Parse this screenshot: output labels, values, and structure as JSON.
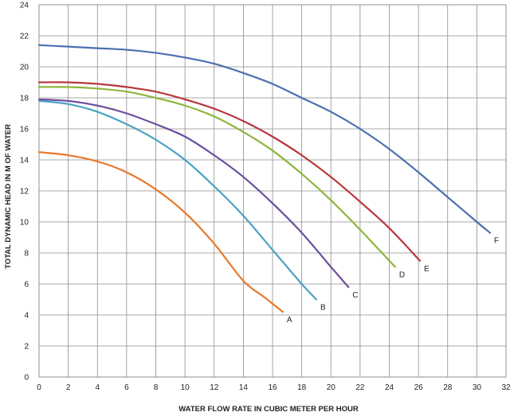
{
  "chart_data": {
    "type": "line",
    "title": "",
    "xlabel": "WATER FLOW RATE IN CUBIC METER PER HOUR",
    "ylabel": "TOTAL DYNAMIC HEAD IN M OF WATER",
    "xlim": [
      0,
      32
    ],
    "ylim": [
      0,
      24
    ],
    "xticks": [
      0,
      2,
      4,
      6,
      8,
      10,
      12,
      14,
      16,
      18,
      20,
      22,
      24,
      26,
      28,
      30,
      32
    ],
    "yticks": [
      0,
      2,
      4,
      6,
      8,
      10,
      12,
      14,
      16,
      18,
      20,
      22,
      24
    ],
    "grid": true,
    "legend": "none",
    "series": [
      {
        "name": "A",
        "color": "#e8782a",
        "x": [
          0,
          2,
          4,
          6,
          8,
          10,
          12,
          14,
          15.5,
          16.7
        ],
        "y": [
          14.5,
          14.3,
          13.9,
          13.2,
          12.1,
          10.6,
          8.6,
          6.2,
          5.1,
          4.2
        ]
      },
      {
        "name": "B",
        "color": "#4aa3c4",
        "x": [
          0,
          2,
          4,
          6,
          8,
          10,
          12,
          14,
          16,
          18,
          19
        ],
        "y": [
          17.8,
          17.6,
          17.1,
          16.3,
          15.3,
          14.0,
          12.3,
          10.4,
          8.2,
          6.0,
          5.0
        ]
      },
      {
        "name": "C",
        "color": "#6b4e9c",
        "x": [
          0,
          2,
          4,
          6,
          8,
          10,
          12,
          14,
          16,
          18,
          20,
          21.2
        ],
        "y": [
          17.9,
          17.8,
          17.5,
          17.0,
          16.3,
          15.5,
          14.3,
          12.9,
          11.2,
          9.3,
          7.1,
          5.8
        ]
      },
      {
        "name": "D",
        "color": "#8db53c",
        "x": [
          0,
          2,
          4,
          6,
          8,
          10,
          12,
          14,
          16,
          18,
          20,
          22,
          24.4
        ],
        "y": [
          18.7,
          18.7,
          18.6,
          18.4,
          18.0,
          17.5,
          16.8,
          15.8,
          14.6,
          13.1,
          11.4,
          9.5,
          7.1
        ]
      },
      {
        "name": "E",
        "color": "#b8363b",
        "x": [
          0,
          2,
          4,
          6,
          8,
          10,
          12,
          14,
          16,
          18,
          20,
          22,
          24,
          26.1
        ],
        "y": [
          19.0,
          19.0,
          18.9,
          18.7,
          18.4,
          17.9,
          17.3,
          16.5,
          15.5,
          14.3,
          12.9,
          11.3,
          9.6,
          7.5
        ]
      },
      {
        "name": "F",
        "color": "#4a70b0",
        "x": [
          0,
          2,
          4,
          6,
          8,
          10,
          12,
          14,
          16,
          18,
          20,
          22,
          24,
          26,
          28,
          30,
          30.9
        ],
        "y": [
          21.4,
          21.3,
          21.2,
          21.1,
          20.9,
          20.6,
          20.2,
          19.6,
          18.9,
          18.0,
          17.1,
          16.0,
          14.7,
          13.2,
          11.6,
          10.0,
          9.3
        ]
      }
    ]
  }
}
